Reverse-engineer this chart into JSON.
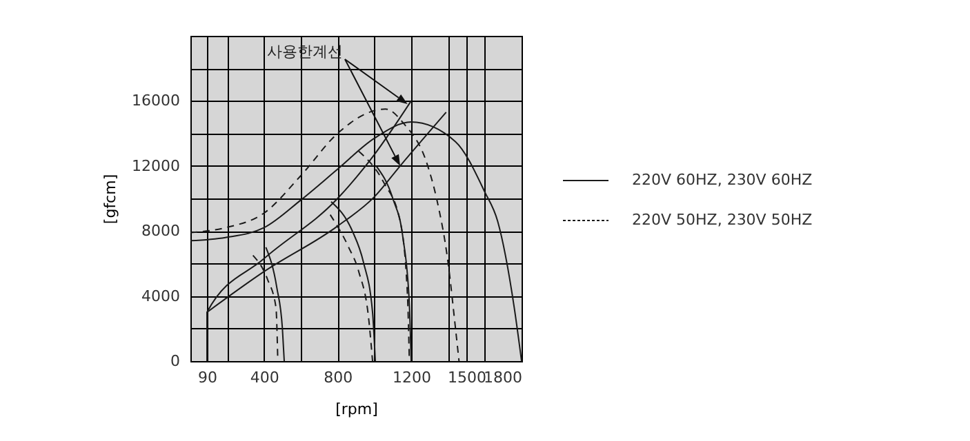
{
  "chart_data": {
    "type": "line",
    "xlabel": "[rpm]",
    "ylabel": "[gfcm]",
    "xlim": [
      0,
      1800
    ],
    "ylim": [
      0,
      20000
    ],
    "xticks": [
      {
        "value": 0,
        "label": null
      },
      90,
      {
        "value": 200,
        "label": null
      },
      400,
      {
        "value": 600,
        "label": null
      },
      800,
      {
        "value": 1000,
        "label": null
      },
      1200,
      {
        "value": 1400,
        "label": null
      },
      1500,
      {
        "value": 1600,
        "label": null
      },
      1800
    ],
    "yticks": [
      0,
      {
        "value": 2000,
        "label": null
      },
      4000,
      {
        "value": 6000,
        "label": null
      },
      8000,
      {
        "value": 10000,
        "label": null
      },
      12000,
      {
        "value": 14000,
        "label": null
      },
      16000,
      {
        "value": 18000,
        "label": null
      }
    ],
    "grid": true,
    "legend": "right",
    "annotations": [
      {
        "text": "사용한계선",
        "x": 1180,
        "y": 15800
      }
    ],
    "series": [
      {
        "name": "220V 60HZ, 230V 60HZ",
        "color": "#1a1a1a",
        "line_style": "solid",
        "x": [
          0,
          190,
          400,
          600,
          800,
          1000,
          1200,
          1440,
          1600,
          1670,
          1760,
          1800
        ],
        "values": [
          7400,
          7600,
          8200,
          9900,
          11800,
          13700,
          14700,
          13500,
          10400,
          8600,
          3300,
          0
        ]
      },
      {
        "name": "220V 50HZ, 230V 50HZ",
        "color": "#1a1a1a",
        "line_style": "dashed",
        "x": [
          0,
          190,
          400,
          600,
          800,
          1000,
          1060,
          1160,
          1290,
          1340,
          1400,
          1440,
          1460
        ],
        "values": [
          7900,
          8200,
          9100,
          11400,
          14000,
          15400,
          15500,
          14600,
          12000,
          9900,
          6100,
          2100,
          0
        ]
      },
      {
        "color": "#1a1a1a",
        "line_style": "solid",
        "x": [
          90,
          90,
          400,
          800,
          1000,
          1200
        ],
        "values": [
          0,
          3000,
          6300,
          10000,
          12700,
          16000
        ]
      },
      {
        "color": "#1a1a1a",
        "line_style": "solid",
        "x": [
          90,
          400,
          800,
          1000,
          1140,
          1390
        ],
        "values": [
          3000,
          5500,
          8300,
          10100,
          12000,
          15300
        ]
      },
      {
        "color": "#1a1a1a",
        "line_style": "solid",
        "x": [
          410,
          470,
          500,
          510
        ],
        "values": [
          7000,
          4500,
          2000,
          0
        ]
      },
      {
        "color": "#1a1a1a",
        "line_style": "dashed",
        "x": [
          340,
          420,
          465,
          475
        ],
        "values": [
          6500,
          5000,
          3300,
          0
        ]
      },
      {
        "color": "#1a1a1a",
        "line_style": "solid",
        "x": [
          765,
          880,
          940,
          990,
          1005
        ],
        "values": [
          9800,
          8000,
          6100,
          3000,
          0
        ]
      },
      {
        "color": "#1a1a1a",
        "line_style": "dashed",
        "x": [
          760,
          860,
          915,
          970,
          990
        ],
        "values": [
          9000,
          7000,
          5500,
          2500,
          0
        ]
      },
      {
        "color": "#1a1a1a",
        "line_style": "solid",
        "x": [
          1010,
          1100,
          1155,
          1190,
          1200
        ],
        "values": [
          12000,
          10000,
          7600,
          3500,
          0
        ]
      },
      {
        "color": "#1a1a1a",
        "line_style": "dashed",
        "x": [
          915,
          1050,
          1140,
          1180,
          1190
        ],
        "values": [
          12900,
          11000,
          8600,
          4000,
          0
        ]
      }
    ]
  }
}
